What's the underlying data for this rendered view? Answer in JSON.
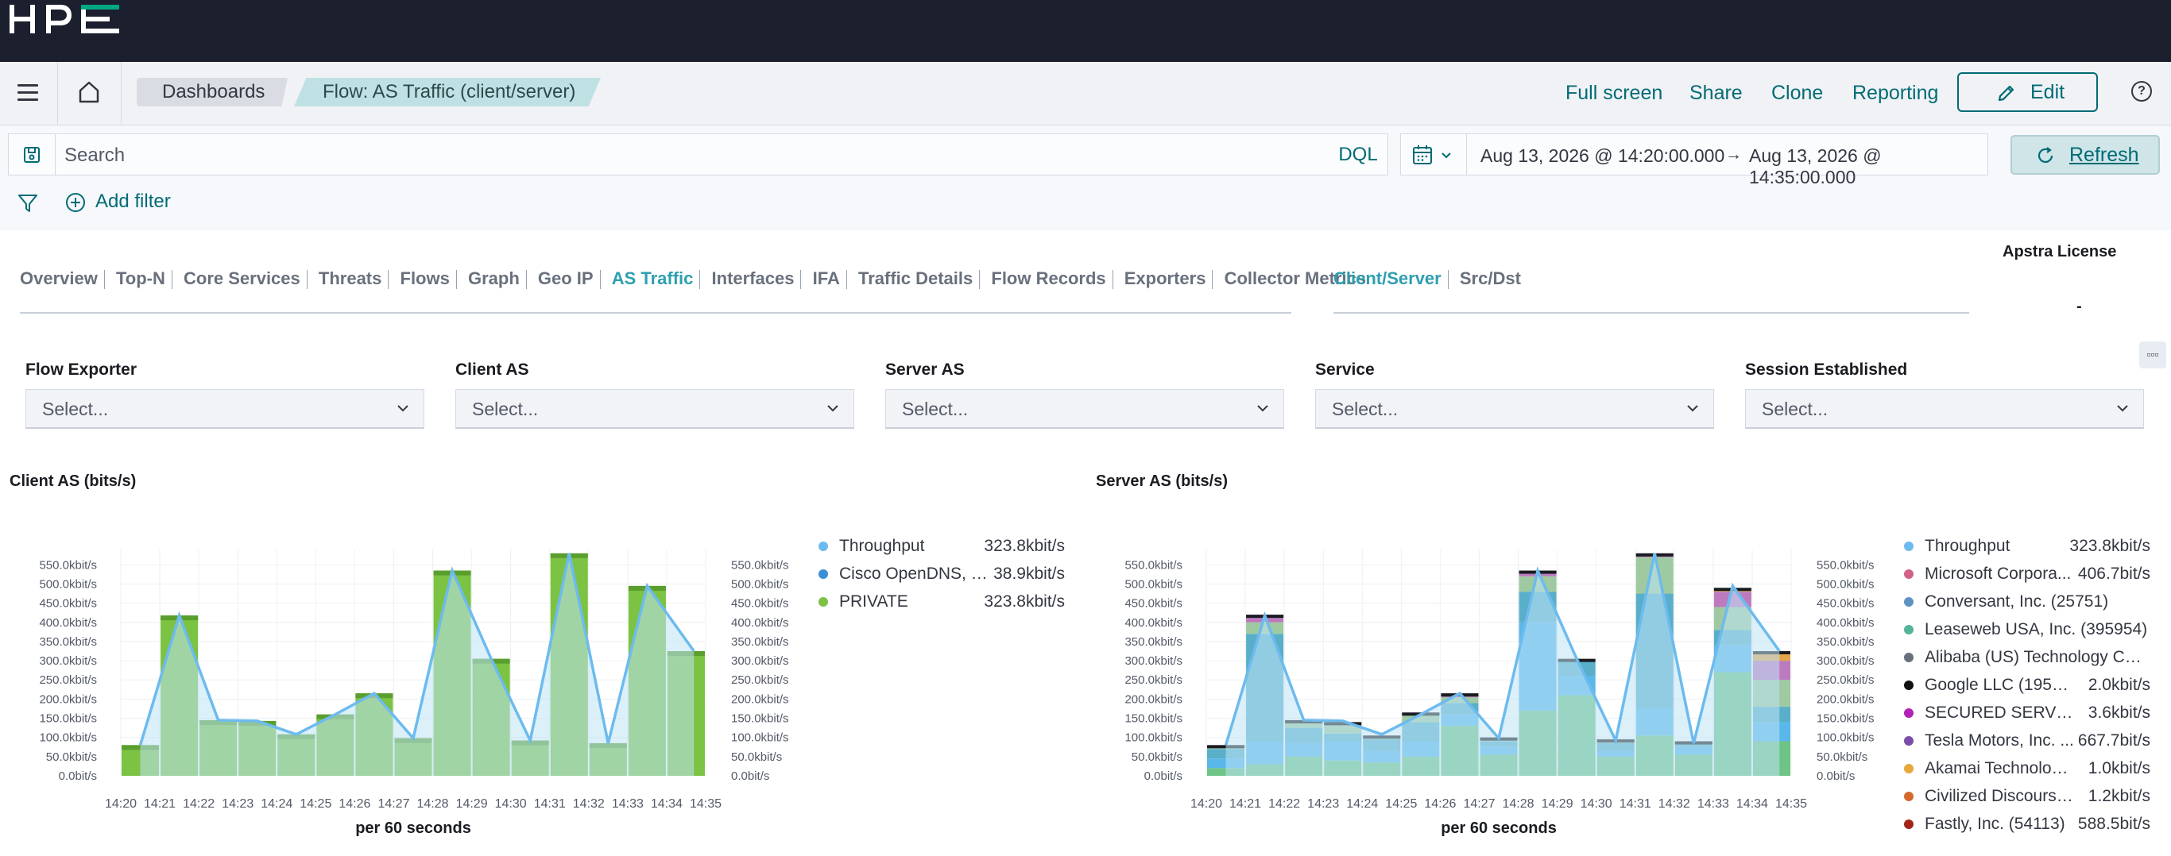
{
  "nav": {
    "breadcrumbs": [
      "Dashboards",
      "Flow: AS Traffic (client/server)"
    ],
    "links": [
      "Full screen",
      "Share",
      "Clone",
      "Reporting"
    ],
    "edit_label": "Edit"
  },
  "query": {
    "placeholder": "Search",
    "language": "DQL"
  },
  "time": {
    "start": "Aug 13, 2026 @ 14:20:00.000",
    "arrow": "→",
    "end": "Aug 13, 2026 @ 14:35:00.000",
    "refresh_label": "Refresh"
  },
  "filters": {
    "add_label": "Add filter"
  },
  "tabs": {
    "main": [
      "Overview",
      "Top-N",
      "Core Services",
      "Threats",
      "Flows",
      "Graph",
      "Geo IP",
      "AS Traffic",
      "Interfaces",
      "IFA",
      "Traffic Details",
      "Flow Records",
      "Exporters",
      "Collector Metrics"
    ],
    "main_active": "AS Traffic",
    "sub": [
      "Client/Server",
      "Src/Dst"
    ],
    "sub_active": "Client/Server"
  },
  "license": {
    "title": "Apstra License",
    "value": "-"
  },
  "controls": [
    {
      "label": "Flow Exporter",
      "placeholder": "Select..."
    },
    {
      "label": "Client AS",
      "placeholder": "Select..."
    },
    {
      "label": "Server AS",
      "placeholder": "Select..."
    },
    {
      "label": "Service",
      "placeholder": "Select..."
    },
    {
      "label": "Session Established",
      "placeholder": "Select..."
    }
  ],
  "colors": {
    "accent": "#006b75",
    "throughput": "#6dbbee",
    "area": "#bfe3f5",
    "private": "#7cc243",
    "private_dark": "#5a9e2d",
    "cisco": "#3b8fd5",
    "server_green": "#6dc486",
    "server_teal": "#59afc9"
  },
  "chart_data": [
    {
      "type": "bar",
      "title": "Client AS (bits/s)",
      "xlabel": "per 60 seconds",
      "ylabel": "",
      "ylim": [
        0,
        590
      ],
      "unit": "kbit/s",
      "ticks": [
        "0.0bit/s",
        "50.0kbit/s",
        "100.0kbit/s",
        "150.0kbit/s",
        "200.0kbit/s",
        "250.0kbit/s",
        "300.0kbit/s",
        "350.0kbit/s",
        "400.0kbit/s",
        "450.0kbit/s",
        "500.0kbit/s",
        "550.0kbit/s"
      ],
      "categories": [
        "14:20",
        "14:21",
        "14:22",
        "14:23",
        "14:24",
        "14:25",
        "14:26",
        "14:27",
        "14:28",
        "14:29",
        "14:30",
        "14:31",
        "14:32",
        "14:33",
        "14:34",
        "14:35"
      ],
      "series": [
        {
          "name": "PRIVATE",
          "values": [
            80,
            418,
            145,
            143,
            108,
            160,
            215,
            98,
            535,
            305,
            92,
            580,
            85,
            495,
            325,
            0
          ]
        },
        {
          "name": "Throughput",
          "values": [
            80,
            418,
            145,
            143,
            108,
            160,
            215,
            98,
            535,
            305,
            92,
            580,
            85,
            495,
            325,
            0
          ]
        }
      ],
      "legend": [
        {
          "name": "Throughput",
          "value": "323.8kbit/s",
          "color": "#6dbbee"
        },
        {
          "name": "Cisco OpenDNS, LL...",
          "value": "38.9kbit/s",
          "color": "#3b8fd5"
        },
        {
          "name": "PRIVATE",
          "value": "323.8kbit/s",
          "color": "#7cc243"
        }
      ]
    },
    {
      "type": "bar",
      "title": "Server AS (bits/s)",
      "xlabel": "per 60 seconds",
      "ylabel": "",
      "ylim": [
        0,
        590
      ],
      "unit": "kbit/s",
      "ticks": [
        "0.0bit/s",
        "50.0kbit/s",
        "100.0kbit/s",
        "150.0kbit/s",
        "200.0kbit/s",
        "250.0kbit/s",
        "300.0kbit/s",
        "350.0kbit/s",
        "400.0kbit/s",
        "450.0kbit/s",
        "500.0kbit/s",
        "550.0kbit/s"
      ],
      "categories": [
        "14:20",
        "14:21",
        "14:22",
        "14:23",
        "14:24",
        "14:25",
        "14:26",
        "14:27",
        "14:28",
        "14:29",
        "14:30",
        "14:31",
        "14:32",
        "14:33",
        "14:34",
        "14:35"
      ],
      "stacks": [
        [
          20,
          25,
          25,
          5,
          5
        ],
        [
          30,
          60,
          280,
          30,
          20
        ],
        [
          50,
          35,
          40,
          15,
          5
        ],
        [
          40,
          50,
          20,
          30
        ],
        [
          35,
          30,
          30,
          10
        ],
        [
          50,
          40,
          50,
          20,
          5
        ],
        [
          130,
          30,
          30,
          15,
          10
        ],
        [
          55,
          20,
          15,
          10
        ],
        [
          170,
          230,
          80,
          40,
          10,
          5
        ],
        [
          210,
          50,
          40,
          5
        ],
        [
          50,
          15,
          20,
          10
        ],
        [
          105,
          70,
          300,
          95,
          10
        ],
        [
          55,
          20,
          10,
          5
        ],
        [
          270,
          70,
          40,
          60,
          40,
          5,
          5
        ],
        [
          90,
          50,
          40,
          70,
          50,
          25
        ]
      ],
      "stack_colors": [
        "#6dc486",
        "#59b7ea",
        "#59afc9",
        "#9fc9a0",
        "#bd7bbf",
        "#e2a54a"
      ],
      "series": [
        {
          "name": "Throughput",
          "values": [
            80,
            418,
            145,
            143,
            108,
            160,
            215,
            98,
            535,
            305,
            92,
            580,
            85,
            495,
            325,
            0
          ]
        }
      ],
      "legend": [
        {
          "name": "Throughput",
          "value": "323.8kbit/s",
          "color": "#6dbbee"
        },
        {
          "name": "Microsoft Corpora...",
          "value": "406.7bit/s",
          "color": "#d36086"
        },
        {
          "name": "Conversant, Inc. (25751)",
          "value": "",
          "color": "#6092c0"
        },
        {
          "name": "Leaseweb USA, Inc. (395954)",
          "value": "",
          "color": "#54b399"
        },
        {
          "name": "Alibaba (US) Technology Co....",
          "value": "",
          "color": "#69707d"
        },
        {
          "name": "Google LLC (19527)",
          "value": "2.0kbit/s",
          "color": "#111111"
        },
        {
          "name": "SECURED SERVERS...",
          "value": "3.6kbit/s",
          "color": "#b023b5"
        },
        {
          "name": "Tesla Motors, Inc. ...",
          "value": "667.7bit/s",
          "color": "#7a4ea8"
        },
        {
          "name": "Akamai Technologi...",
          "value": "1.0kbit/s",
          "color": "#e7a73a"
        },
        {
          "name": "Civilized Discourse ...",
          "value": "1.2kbit/s",
          "color": "#d36a2c"
        },
        {
          "name": "Fastly, Inc. (54113)",
          "value": "588.5bit/s",
          "color": "#a3241b"
        }
      ]
    }
  ]
}
